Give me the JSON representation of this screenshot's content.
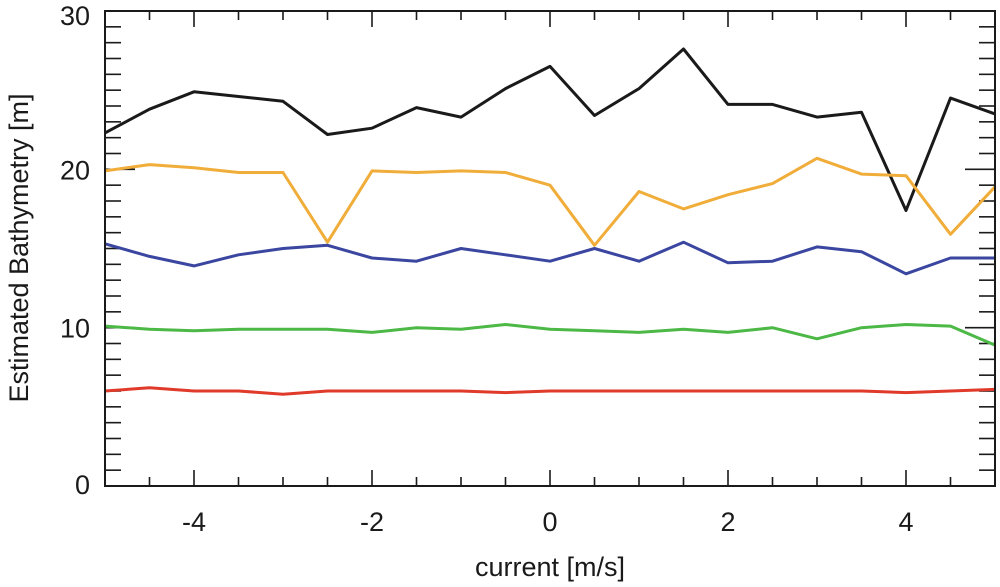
{
  "chart_data": {
    "type": "line",
    "title": "",
    "xlabel": "current [m/s]",
    "ylabel": "Estimated Bathymetry [m]",
    "xlim": [
      -5,
      5
    ],
    "ylim": [
      0,
      30
    ],
    "x_major_ticks": [
      -4,
      -2,
      0,
      2,
      4
    ],
    "x_tick_labels": [
      "-4",
      "-2",
      "0",
      "2",
      "4"
    ],
    "x_minor_step": 0.5,
    "y_major_ticks": [
      0,
      10,
      20,
      30
    ],
    "y_tick_labels": [
      "0",
      "10",
      "20",
      "30"
    ],
    "y_minor_step": 1,
    "grid": false,
    "legend": "none",
    "x": [
      -5,
      -4.5,
      -4,
      -3.5,
      -3,
      -2.5,
      -2,
      -1.5,
      -1,
      -0.5,
      0,
      0.5,
      1,
      1.5,
      2,
      2.5,
      3,
      3.5,
      4,
      4.5,
      5
    ],
    "series": [
      {
        "color": "#1a1a1a",
        "values": [
          22.3,
          23.8,
          24.9,
          24.6,
          24.3,
          22.2,
          22.6,
          23.9,
          23.3,
          25.1,
          26.5,
          23.4,
          25.1,
          27.6,
          24.1,
          24.1,
          23.3,
          23.6,
          17.4,
          24.5,
          23.5
        ]
      },
      {
        "color": "#f0ad3a",
        "values": [
          19.9,
          20.3,
          20.1,
          19.8,
          19.8,
          15.4,
          19.9,
          19.8,
          19.9,
          19.8,
          19.0,
          15.2,
          18.6,
          17.5,
          18.4,
          19.1,
          20.7,
          19.7,
          19.6,
          15.9,
          18.9
        ]
      },
      {
        "color": "#3a46a0",
        "values": [
          15.3,
          14.5,
          13.9,
          14.6,
          15.0,
          15.2,
          14.4,
          14.2,
          15.0,
          14.6,
          14.2,
          15.0,
          14.2,
          15.4,
          14.1,
          14.2,
          15.1,
          14.8,
          13.4,
          14.4,
          14.4
        ]
      },
      {
        "color": "#4cb846",
        "values": [
          10.1,
          9.9,
          9.8,
          9.9,
          9.9,
          9.9,
          9.7,
          10.0,
          9.9,
          10.2,
          9.9,
          9.8,
          9.7,
          9.9,
          9.7,
          10.0,
          9.3,
          10.0,
          10.2,
          10.1,
          8.9
        ]
      },
      {
        "color": "#e03a2a",
        "values": [
          6.0,
          6.2,
          6.0,
          6.0,
          5.8,
          6.0,
          6.0,
          6.0,
          6.0,
          5.9,
          6.0,
          6.0,
          6.0,
          6.0,
          6.0,
          6.0,
          6.0,
          6.0,
          5.9,
          6.0,
          6.1
        ]
      }
    ]
  }
}
